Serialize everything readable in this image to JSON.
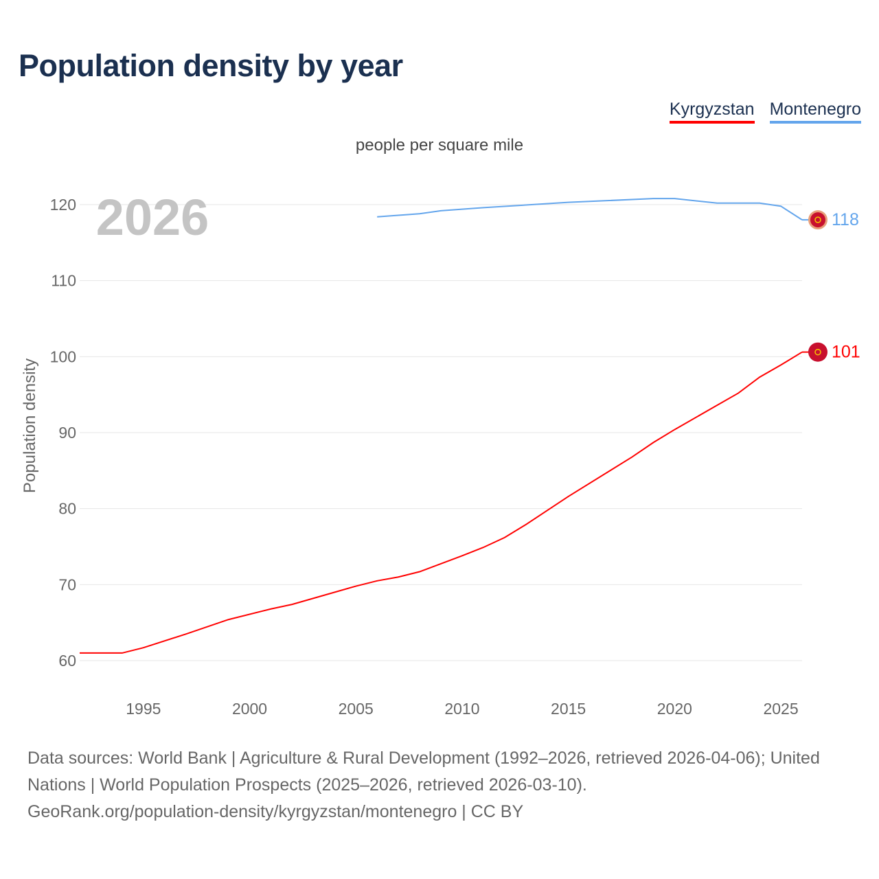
{
  "title": "Population density by year",
  "subtitle": "people per square mile",
  "year_label": "2026",
  "footer": {
    "sources": "Data sources: World Bank | Agriculture & Rural Development (1992–2026, retrieved 2026-04-06); United Nations | World Population Prospects (2025–2026, retrieved 2026-03-10).",
    "link": "GeoRank.org/population-density/kyrgyzstan/montenegro | CC BY"
  },
  "chart_data": {
    "type": "line",
    "title": "Population density by year",
    "xlabel": "",
    "ylabel": "Population density",
    "xlim": [
      1992,
      2026
    ],
    "ylim": [
      56,
      124
    ],
    "yticks": [
      60,
      70,
      80,
      90,
      100,
      110,
      120
    ],
    "xticks": [
      1995,
      2000,
      2005,
      2010,
      2015,
      2020,
      2025
    ],
    "grid": true,
    "legend_position": "top-right",
    "series": [
      {
        "name": "Kyrgyzstan",
        "color": "#ff0000",
        "end_label": "101",
        "x": [
          1992,
          1994,
          1995,
          1997,
          1999,
          2001,
          2002,
          2003,
          2005,
          2006,
          2007,
          2008,
          2010,
          2011,
          2012,
          2013,
          2015,
          2018,
          2019,
          2020,
          2022,
          2023,
          2024,
          2025,
          2026
        ],
        "values": [
          61.0,
          61.0,
          61.7,
          63.5,
          65.4,
          66.8,
          67.4,
          68.2,
          69.8,
          70.5,
          71.0,
          71.7,
          73.8,
          74.9,
          76.2,
          77.9,
          81.6,
          86.8,
          88.7,
          90.4,
          93.6,
          95.2,
          97.3,
          98.9,
          100.6
        ]
      },
      {
        "name": "Montenegro",
        "color": "#63a5ec",
        "end_label": "118",
        "x": [
          2006,
          2008,
          2009,
          2011,
          2015,
          2019,
          2020,
          2022,
          2024,
          2025,
          2026
        ],
        "values": [
          118.4,
          118.8,
          119.2,
          119.6,
          120.3,
          120.8,
          120.8,
          120.2,
          120.2,
          119.8,
          118.0
        ]
      }
    ]
  }
}
